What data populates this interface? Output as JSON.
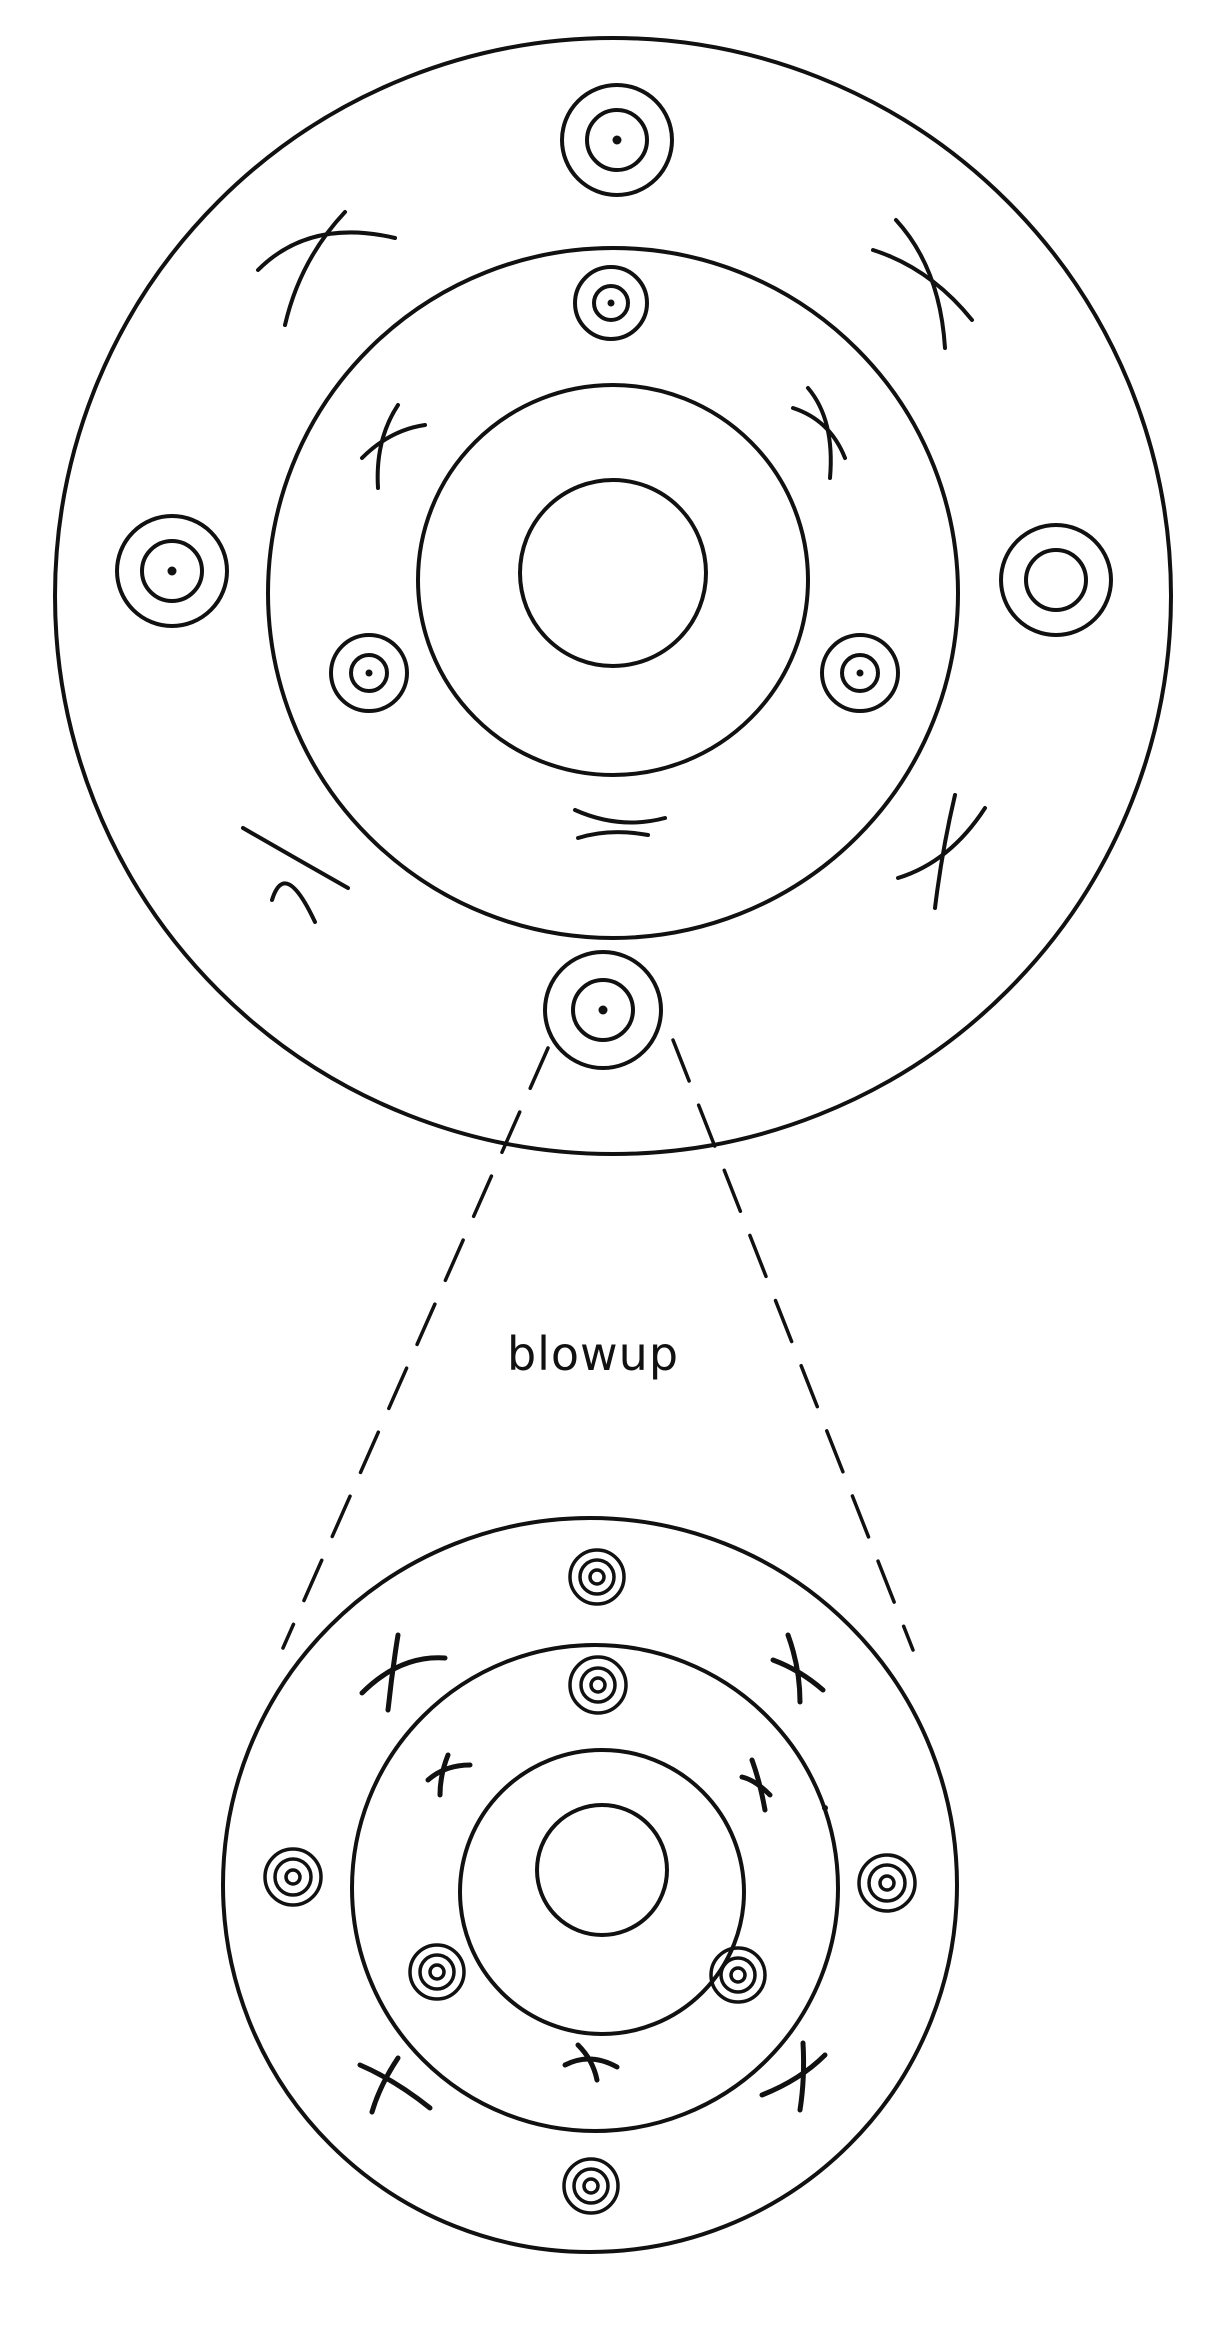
{
  "diagram": {
    "blowup_label": "blowup"
  }
}
